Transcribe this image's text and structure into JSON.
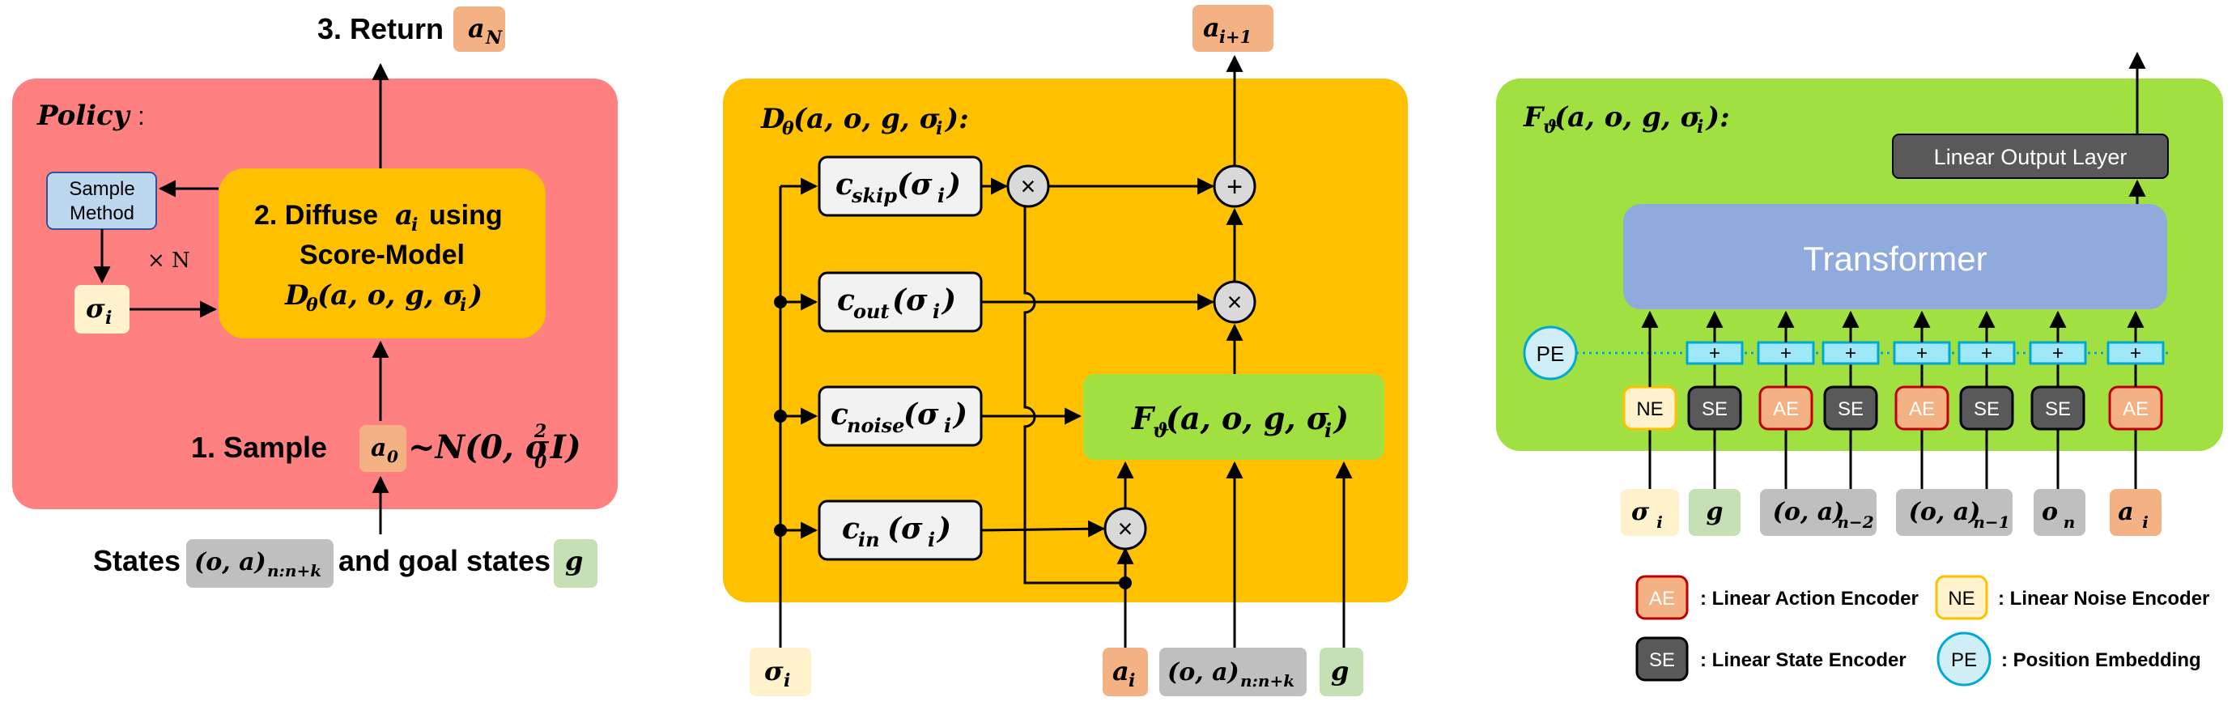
{
  "colors": {
    "policy_panel": "#ff8080",
    "denoiser_panel": "#ffc000",
    "scorenet_panel": "#a0e040",
    "action": "#f4b183",
    "state": "#bfbfbf",
    "goal": "#c5e0b4",
    "noise": "#fff2cc",
    "sample_method": "#bdd7ee",
    "transformer": "#8faadc",
    "dark_box": "#595959",
    "token": "#9ee8f8",
    "pe": "#cfeef8"
  },
  "policy": {
    "title": "Policy",
    "title_colon": ":",
    "return_label": "3. Return",
    "return_var": "a",
    "return_sub": "N",
    "sample_method_line1": "Sample",
    "sample_method_line2": "Method",
    "repeat": "× N",
    "sigma": "σ",
    "sigma_sub": "i",
    "diffuse_line1": "2. Diffuse",
    "diffuse_var": "a",
    "diffuse_var_sub": "i",
    "diffuse_tail": "using",
    "diffuse_line2": "Score-Model",
    "diffuse_formula_main": "D",
    "diffuse_formula_sub": "θ",
    "diffuse_formula_args": "(a, o, g, σ",
    "diffuse_formula_args_sub": "i",
    "diffuse_formula_close": ")",
    "sample_label": "1.   Sample",
    "a0": "a",
    "a0_sub": "0",
    "dist": "~N(0, σ",
    "dist_sup": "2",
    "dist_sub": "0",
    "dist_tail": "I)",
    "states_label": "States",
    "states_var": "(o, a)",
    "states_sub": "n:n+k",
    "goal_label": "and goal states",
    "goal_var": "g"
  },
  "denoiser": {
    "title_main": "D",
    "title_sub": "θ",
    "title_args": "(a, o, g, σ",
    "title_args_sub": "i",
    "title_close": "):",
    "output_var": "a",
    "output_sub": "i+1",
    "c_skip": "skip",
    "c_out": "out",
    "c_noise": "noise",
    "c_in": "in",
    "c_letter": "c",
    "c_arg": "(σ",
    "c_arg_sub": "i",
    "c_arg_close": ")",
    "times": "×",
    "plus": "+",
    "f_main": "F",
    "f_sub": "ϑ",
    "f_args": "(a, o, g, σ",
    "f_args_sub": "i",
    "f_close": ")",
    "in_sigma": "σ",
    "in_sigma_sub": "i",
    "in_a": "a",
    "in_a_sub": "i",
    "in_oa": "(o, a)",
    "in_oa_sub": "n:n+k",
    "in_g": "g"
  },
  "scorenet": {
    "title_main": "F",
    "title_sub": "ϑ",
    "title_args": "(a, o, g, σ",
    "title_args_sub": "i",
    "title_close": "):",
    "output_layer": "Linear Output Layer",
    "transformer": "Transformer",
    "pe": "PE",
    "plus": "+",
    "encoders": [
      "NE",
      "SE",
      "AE",
      "SE",
      "AE",
      "SE",
      "SE",
      "AE"
    ],
    "inputs": [
      {
        "main": "σ",
        "sub": "i"
      },
      {
        "main": "g",
        "sub": ""
      },
      {
        "main": "(o, a)",
        "sub": "n−2"
      },
      {
        "main": "(o, a)",
        "sub": "n−1"
      },
      {
        "main": "o",
        "sub": "n"
      },
      {
        "main": "a",
        "sub": "i"
      }
    ]
  },
  "legend": {
    "ae_badge": "AE",
    "ae_text": ": Linear Action Encoder",
    "ne_badge": "NE",
    "ne_text": ": Linear Noise Encoder",
    "se_badge": "SE",
    "se_text": ": Linear State Encoder",
    "pe_badge": "PE",
    "pe_text": ": Position Embedding"
  }
}
